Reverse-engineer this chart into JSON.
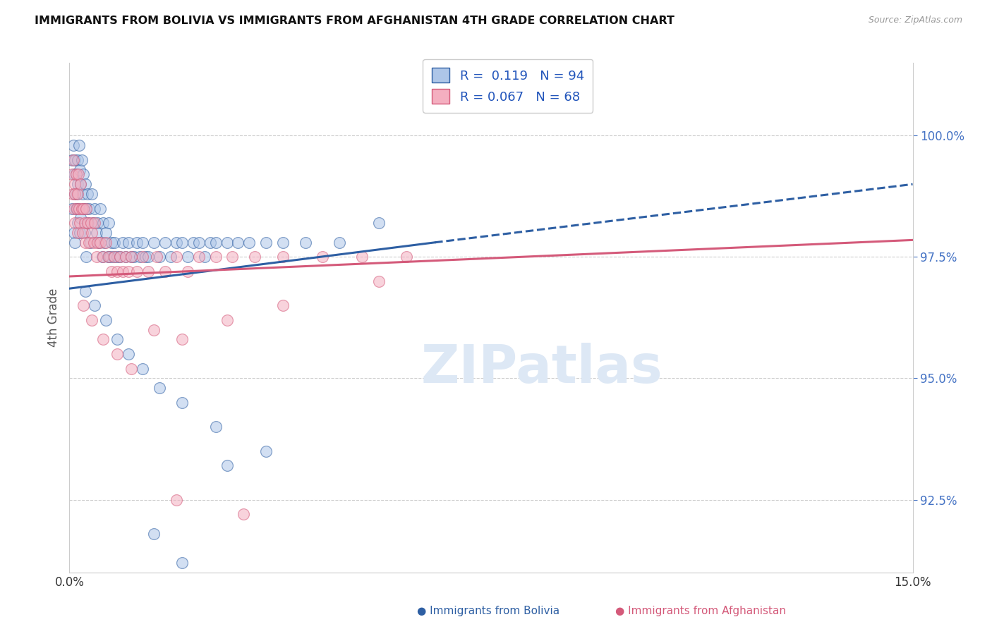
{
  "title": "IMMIGRANTS FROM BOLIVIA VS IMMIGRANTS FROM AFGHANISTAN 4TH GRADE CORRELATION CHART",
  "source_text": "Source: ZipAtlas.com",
  "ylabel": "4th Grade",
  "xlim": [
    0.0,
    15.0
  ],
  "ylim": [
    91.0,
    101.5
  ],
  "yticks": [
    92.5,
    95.0,
    97.5,
    100.0
  ],
  "ytick_labels": [
    "92.5%",
    "95.0%",
    "97.5%",
    "100.0%"
  ],
  "r_bolivia": 0.119,
  "n_bolivia": 94,
  "r_afghanistan": 0.067,
  "n_afghanistan": 68,
  "color_bolivia": "#aec6e8",
  "color_afghanistan": "#f4afc0",
  "trendline_bolivia_color": "#2e5fa3",
  "trendline_afghanistan_color": "#d45a7a",
  "bolivia_trendline_x": [
    0.0,
    6.5,
    15.0
  ],
  "bolivia_trendline_y": [
    96.85,
    97.8,
    99.0
  ],
  "bolivia_dashed_start_x": 6.5,
  "afghanistan_trendline_x": [
    0.0,
    15.0
  ],
  "afghanistan_trendline_y": [
    97.1,
    97.85
  ],
  "bolivia_x": [
    0.05,
    0.05,
    0.07,
    0.08,
    0.08,
    0.1,
    0.1,
    0.1,
    0.12,
    0.12,
    0.13,
    0.14,
    0.15,
    0.15,
    0.16,
    0.17,
    0.18,
    0.18,
    0.2,
    0.2,
    0.22,
    0.23,
    0.25,
    0.25,
    0.27,
    0.28,
    0.3,
    0.3,
    0.32,
    0.33,
    0.35,
    0.37,
    0.4,
    0.42,
    0.45,
    0.48,
    0.5,
    0.52,
    0.55,
    0.58,
    0.6,
    0.62,
    0.65,
    0.68,
    0.7,
    0.72,
    0.75,
    0.78,
    0.8,
    0.85,
    0.9,
    0.95,
    1.0,
    1.05,
    1.1,
    1.15,
    1.2,
    1.25,
    1.3,
    1.35,
    1.4,
    1.5,
    1.6,
    1.7,
    1.8,
    1.9,
    2.0,
    2.1,
    2.2,
    2.3,
    2.4,
    2.5,
    2.6,
    2.8,
    3.0,
    3.2,
    3.5,
    3.8,
    4.2,
    4.8,
    0.28,
    0.45,
    0.65,
    0.85,
    1.05,
    1.3,
    1.6,
    2.0,
    2.6,
    3.5,
    1.5,
    2.0,
    2.8,
    5.5
  ],
  "bolivia_y": [
    99.5,
    98.5,
    99.8,
    99.2,
    98.0,
    99.5,
    98.8,
    97.8,
    99.2,
    98.5,
    98.8,
    99.5,
    99.0,
    98.2,
    98.5,
    99.8,
    99.3,
    98.0,
    99.0,
    98.3,
    99.5,
    98.8,
    99.2,
    98.5,
    98.0,
    99.0,
    98.5,
    97.5,
    98.8,
    98.2,
    98.5,
    97.8,
    98.8,
    98.2,
    98.5,
    98.0,
    98.2,
    97.8,
    98.5,
    97.5,
    98.2,
    97.8,
    98.0,
    97.5,
    98.2,
    97.5,
    97.8,
    97.5,
    97.8,
    97.5,
    97.5,
    97.8,
    97.5,
    97.8,
    97.5,
    97.5,
    97.8,
    97.5,
    97.8,
    97.5,
    97.5,
    97.8,
    97.5,
    97.8,
    97.5,
    97.8,
    97.8,
    97.5,
    97.8,
    97.8,
    97.5,
    97.8,
    97.8,
    97.8,
    97.8,
    97.8,
    97.8,
    97.8,
    97.8,
    97.8,
    96.8,
    96.5,
    96.2,
    95.8,
    95.5,
    95.2,
    94.8,
    94.5,
    94.0,
    93.5,
    91.8,
    91.2,
    93.2,
    98.2
  ],
  "afghanistan_x": [
    0.05,
    0.06,
    0.07,
    0.08,
    0.09,
    0.1,
    0.1,
    0.12,
    0.13,
    0.14,
    0.15,
    0.16,
    0.17,
    0.18,
    0.2,
    0.22,
    0.23,
    0.25,
    0.27,
    0.28,
    0.3,
    0.32,
    0.35,
    0.38,
    0.4,
    0.43,
    0.45,
    0.48,
    0.5,
    0.55,
    0.6,
    0.65,
    0.7,
    0.75,
    0.8,
    0.85,
    0.9,
    0.95,
    1.0,
    1.05,
    1.1,
    1.2,
    1.3,
    1.4,
    1.55,
    1.7,
    1.9,
    2.1,
    2.3,
    2.6,
    2.9,
    3.3,
    3.8,
    4.5,
    5.2,
    6.0,
    0.25,
    0.4,
    0.6,
    0.85,
    1.1,
    1.5,
    2.0,
    2.8,
    3.8,
    5.5,
    1.9,
    3.1
  ],
  "afghanistan_y": [
    99.2,
    98.8,
    99.5,
    98.5,
    99.0,
    98.8,
    98.2,
    99.2,
    98.5,
    98.0,
    98.8,
    99.2,
    98.5,
    98.2,
    99.0,
    98.5,
    98.0,
    98.5,
    98.2,
    97.8,
    98.5,
    98.2,
    97.8,
    98.2,
    98.0,
    97.8,
    98.2,
    97.5,
    97.8,
    97.8,
    97.5,
    97.8,
    97.5,
    97.2,
    97.5,
    97.2,
    97.5,
    97.2,
    97.5,
    97.2,
    97.5,
    97.2,
    97.5,
    97.2,
    97.5,
    97.2,
    97.5,
    97.2,
    97.5,
    97.5,
    97.5,
    97.5,
    97.5,
    97.5,
    97.5,
    97.5,
    96.5,
    96.2,
    95.8,
    95.5,
    95.2,
    96.0,
    95.8,
    96.2,
    96.5,
    97.0,
    92.5,
    92.2
  ]
}
